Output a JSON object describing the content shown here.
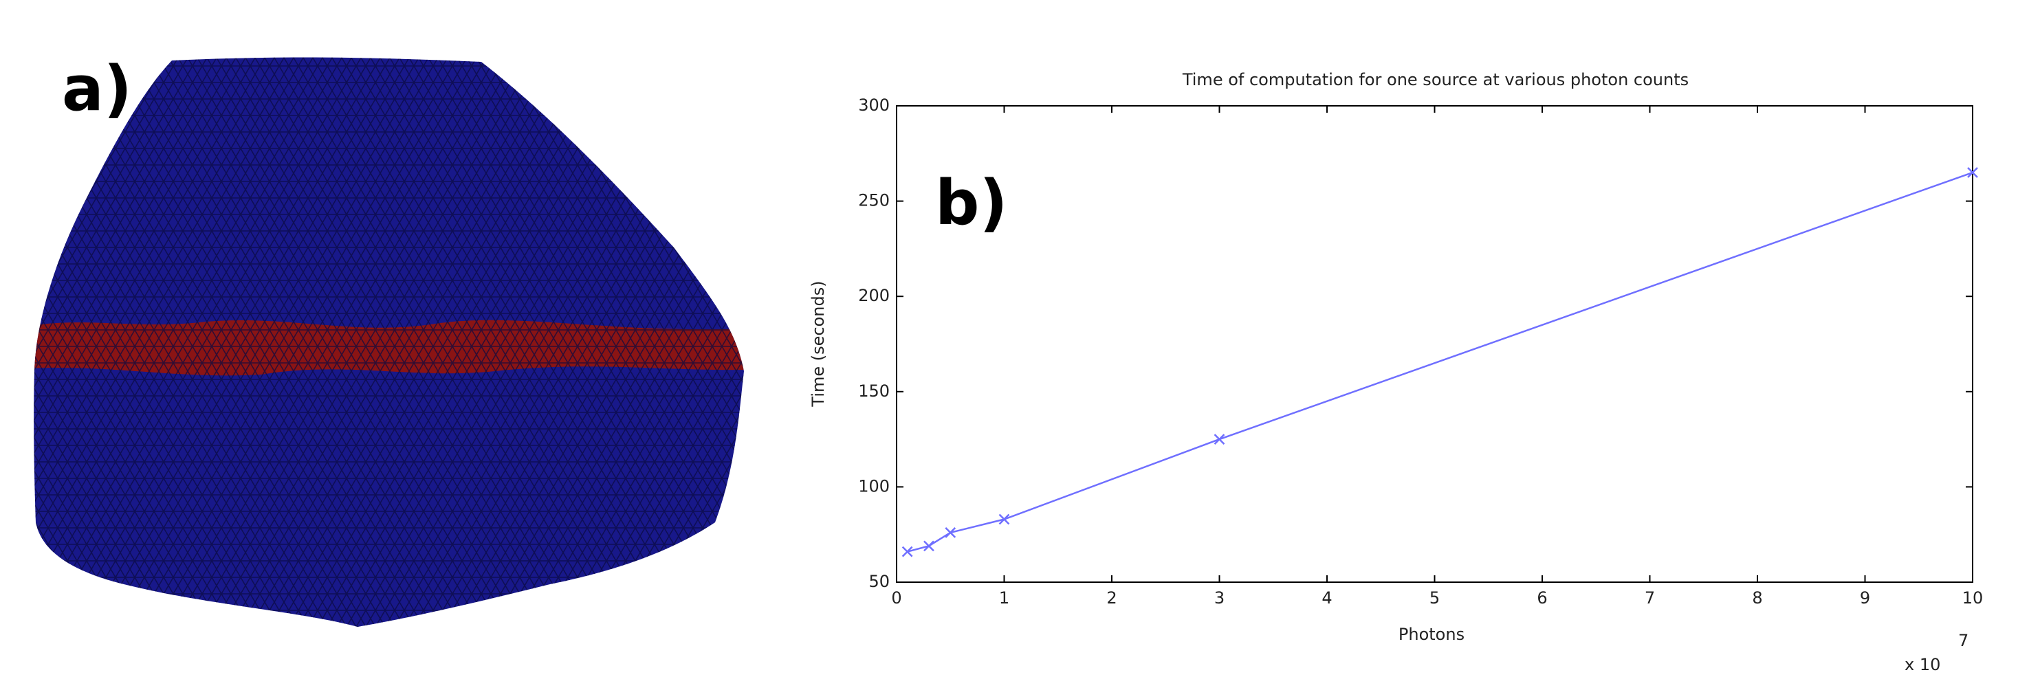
{
  "panel_labels": [
    "a)",
    "b)"
  ],
  "chart_data": {
    "type": "line",
    "title": "Time of computation for one source at various photon counts",
    "xlabel": "Photons",
    "ylabel": "Time (seconds)",
    "x_multiplier": "x 10",
    "x_multiplier_exponent": "7",
    "x": [
      0.1,
      0.3,
      0.5,
      1,
      3,
      10
    ],
    "series": [
      {
        "color": "#6f6fff",
        "values": [
          66,
          69,
          76,
          83,
          125,
          265
        ]
      }
    ],
    "xlim": [
      0,
      10
    ],
    "xticks": [
      0,
      1,
      2,
      3,
      4,
      5,
      6,
      7,
      8,
      9,
      10
    ],
    "ylim": [
      50,
      300
    ],
    "yticks": [
      50,
      100,
      150,
      200,
      250,
      300
    ]
  }
}
